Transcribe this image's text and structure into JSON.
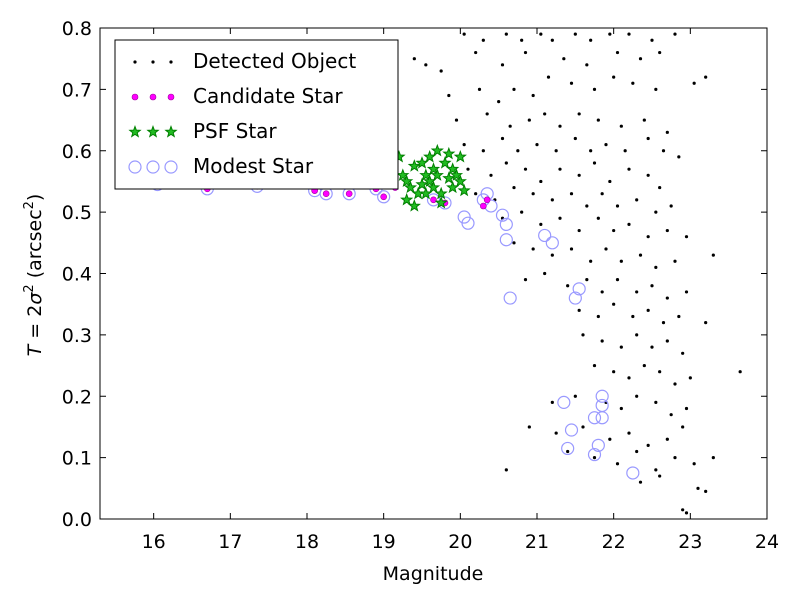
{
  "chart_data": {
    "type": "scatter",
    "xlabel": "Magnitude",
    "ylabel_parts": {
      "lhs": "T",
      "eq": " = 2",
      "sym": "σ",
      "sup": "2",
      "unit": " (arcsec",
      "unit_sup": "2",
      "close": ")"
    },
    "xlim": [
      15.3,
      24.0
    ],
    "ylim": [
      0.0,
      0.8
    ],
    "x_ticks": [
      16,
      17,
      18,
      19,
      20,
      21,
      22,
      23,
      24
    ],
    "y_ticks": [
      0.0,
      0.1,
      0.2,
      0.3,
      0.4,
      0.5,
      0.6,
      0.7,
      0.8
    ],
    "x_tick_labels": [
      "16",
      "17",
      "18",
      "19",
      "20",
      "21",
      "22",
      "23",
      "24"
    ],
    "y_tick_labels": [
      "0.0",
      "0.1",
      "0.2",
      "0.3",
      "0.4",
      "0.5",
      "0.6",
      "0.7",
      "0.8"
    ],
    "grid": false,
    "legend_position": "top-left",
    "colors": {
      "detected": "#000000",
      "candidate": "#ff00ff",
      "psf": "#008000",
      "modest": "#9999ff"
    },
    "series": [
      {
        "name": "Detected Object",
        "marker": "dot",
        "points": [
          [
            20.05,
            0.79
          ],
          [
            20.3,
            0.78
          ],
          [
            20.6,
            0.79
          ],
          [
            20.8,
            0.78
          ],
          [
            21.05,
            0.79
          ],
          [
            21.2,
            0.78
          ],
          [
            21.5,
            0.79
          ],
          [
            21.7,
            0.78
          ],
          [
            21.95,
            0.79
          ],
          [
            22.2,
            0.79
          ],
          [
            22.5,
            0.78
          ],
          [
            22.8,
            0.79
          ],
          [
            19.15,
            0.77
          ],
          [
            19.4,
            0.75
          ],
          [
            19.55,
            0.74
          ],
          [
            19.75,
            0.73
          ],
          [
            20.2,
            0.76
          ],
          [
            20.55,
            0.74
          ],
          [
            20.85,
            0.76
          ],
          [
            21.35,
            0.75
          ],
          [
            21.65,
            0.74
          ],
          [
            22.05,
            0.76
          ],
          [
            22.35,
            0.75
          ],
          [
            22.6,
            0.76
          ],
          [
            19.85,
            0.69
          ],
          [
            20.25,
            0.7
          ],
          [
            20.5,
            0.68
          ],
          [
            20.7,
            0.7
          ],
          [
            20.95,
            0.69
          ],
          [
            21.15,
            0.72
          ],
          [
            21.45,
            0.71
          ],
          [
            21.75,
            0.7
          ],
          [
            22.0,
            0.72
          ],
          [
            22.25,
            0.71
          ],
          [
            22.55,
            0.7
          ],
          [
            23.2,
            0.72
          ],
          [
            23.05,
            0.71
          ],
          [
            19.95,
            0.65
          ],
          [
            20.35,
            0.66
          ],
          [
            20.65,
            0.64
          ],
          [
            20.9,
            0.65
          ],
          [
            21.1,
            0.66
          ],
          [
            21.3,
            0.64
          ],
          [
            21.55,
            0.66
          ],
          [
            21.8,
            0.65
          ],
          [
            22.1,
            0.64
          ],
          [
            22.4,
            0.65
          ],
          [
            22.7,
            0.63
          ],
          [
            20.05,
            0.61
          ],
          [
            20.3,
            0.6
          ],
          [
            20.55,
            0.62
          ],
          [
            20.75,
            0.6
          ],
          [
            21.0,
            0.61
          ],
          [
            21.25,
            0.6
          ],
          [
            21.5,
            0.62
          ],
          [
            21.7,
            0.6
          ],
          [
            21.9,
            0.61
          ],
          [
            22.15,
            0.6
          ],
          [
            22.45,
            0.62
          ],
          [
            22.65,
            0.6
          ],
          [
            22.85,
            0.59
          ],
          [
            20.1,
            0.57
          ],
          [
            20.4,
            0.56
          ],
          [
            20.6,
            0.58
          ],
          [
            20.85,
            0.57
          ],
          [
            21.05,
            0.55
          ],
          [
            21.3,
            0.57
          ],
          [
            21.55,
            0.56
          ],
          [
            21.75,
            0.58
          ],
          [
            21.95,
            0.55
          ],
          [
            22.2,
            0.57
          ],
          [
            22.45,
            0.56
          ],
          [
            22.6,
            0.54
          ],
          [
            20.2,
            0.53
          ],
          [
            20.45,
            0.52
          ],
          [
            20.7,
            0.54
          ],
          [
            20.95,
            0.53
          ],
          [
            21.2,
            0.52
          ],
          [
            21.45,
            0.53
          ],
          [
            21.65,
            0.51
          ],
          [
            21.85,
            0.53
          ],
          [
            22.05,
            0.51
          ],
          [
            22.3,
            0.52
          ],
          [
            22.55,
            0.5
          ],
          [
            22.75,
            0.51
          ],
          [
            20.55,
            0.49
          ],
          [
            20.8,
            0.5
          ],
          [
            21.05,
            0.48
          ],
          [
            21.3,
            0.49
          ],
          [
            21.55,
            0.47
          ],
          [
            21.8,
            0.49
          ],
          [
            22.0,
            0.47
          ],
          [
            22.2,
            0.48
          ],
          [
            22.45,
            0.46
          ],
          [
            22.7,
            0.47
          ],
          [
            22.95,
            0.46
          ],
          [
            20.7,
            0.45
          ],
          [
            20.95,
            0.44
          ],
          [
            21.2,
            0.43
          ],
          [
            21.45,
            0.44
          ],
          [
            21.7,
            0.42
          ],
          [
            21.9,
            0.44
          ],
          [
            22.1,
            0.42
          ],
          [
            22.35,
            0.43
          ],
          [
            22.55,
            0.41
          ],
          [
            22.8,
            0.42
          ],
          [
            23.3,
            0.43
          ],
          [
            20.85,
            0.39
          ],
          [
            21.1,
            0.4
          ],
          [
            21.4,
            0.38
          ],
          [
            21.65,
            0.39
          ],
          [
            21.85,
            0.37
          ],
          [
            22.05,
            0.39
          ],
          [
            22.3,
            0.37
          ],
          [
            22.5,
            0.38
          ],
          [
            22.7,
            0.36
          ],
          [
            22.95,
            0.37
          ],
          [
            21.55,
            0.34
          ],
          [
            21.8,
            0.33
          ],
          [
            22.0,
            0.35
          ],
          [
            22.25,
            0.33
          ],
          [
            22.45,
            0.34
          ],
          [
            22.65,
            0.32
          ],
          [
            22.85,
            0.33
          ],
          [
            23.2,
            0.32
          ],
          [
            21.6,
            0.3
          ],
          [
            21.85,
            0.29
          ],
          [
            22.1,
            0.28
          ],
          [
            22.3,
            0.3
          ],
          [
            22.5,
            0.28
          ],
          [
            22.7,
            0.29
          ],
          [
            22.9,
            0.27
          ],
          [
            21.75,
            0.25
          ],
          [
            22.0,
            0.24
          ],
          [
            22.2,
            0.23
          ],
          [
            22.4,
            0.25
          ],
          [
            22.6,
            0.24
          ],
          [
            22.8,
            0.22
          ],
          [
            23.0,
            0.23
          ],
          [
            23.65,
            0.24
          ],
          [
            21.2,
            0.19
          ],
          [
            21.5,
            0.2
          ],
          [
            21.9,
            0.19
          ],
          [
            22.1,
            0.18
          ],
          [
            22.3,
            0.2
          ],
          [
            22.55,
            0.19
          ],
          [
            22.75,
            0.17
          ],
          [
            22.95,
            0.18
          ],
          [
            20.9,
            0.15
          ],
          [
            21.25,
            0.14
          ],
          [
            21.6,
            0.15
          ],
          [
            21.95,
            0.13
          ],
          [
            22.2,
            0.14
          ],
          [
            22.45,
            0.12
          ],
          [
            22.7,
            0.13
          ],
          [
            22.9,
            0.15
          ],
          [
            21.4,
            0.11
          ],
          [
            21.75,
            0.1
          ],
          [
            22.05,
            0.09
          ],
          [
            22.3,
            0.11
          ],
          [
            22.55,
            0.08
          ],
          [
            22.8,
            0.1
          ],
          [
            23.05,
            0.09
          ],
          [
            23.3,
            0.1
          ],
          [
            20.6,
            0.08
          ],
          [
            22.35,
            0.06
          ],
          [
            22.6,
            0.07
          ],
          [
            23.1,
            0.05
          ],
          [
            23.2,
            0.045
          ],
          [
            22.9,
            0.015
          ],
          [
            22.95,
            0.01
          ]
        ]
      },
      {
        "name": "Candidate Star",
        "marker": "circle-small",
        "points": [
          [
            16.05,
            0.545
          ],
          [
            16.7,
            0.538
          ],
          [
            17.35,
            0.542
          ],
          [
            17.85,
            0.544
          ],
          [
            18.1,
            0.535
          ],
          [
            18.25,
            0.53
          ],
          [
            18.55,
            0.53
          ],
          [
            18.9,
            0.538
          ],
          [
            19.0,
            0.525
          ],
          [
            19.05,
            0.545
          ],
          [
            19.15,
            0.54
          ],
          [
            19.65,
            0.52
          ],
          [
            19.8,
            0.515
          ],
          [
            20.3,
            0.51
          ],
          [
            20.35,
            0.52
          ]
        ]
      },
      {
        "name": "PSF Star",
        "marker": "star",
        "points": [
          [
            19.1,
            0.58
          ],
          [
            19.2,
            0.59
          ],
          [
            19.25,
            0.56
          ],
          [
            19.3,
            0.55
          ],
          [
            19.35,
            0.54
          ],
          [
            19.3,
            0.52
          ],
          [
            19.4,
            0.575
          ],
          [
            19.45,
            0.53
          ],
          [
            19.5,
            0.58
          ],
          [
            19.5,
            0.545
          ],
          [
            19.55,
            0.56
          ],
          [
            19.55,
            0.53
          ],
          [
            19.6,
            0.59
          ],
          [
            19.6,
            0.55
          ],
          [
            19.65,
            0.57
          ],
          [
            19.65,
            0.54
          ],
          [
            19.7,
            0.6
          ],
          [
            19.7,
            0.56
          ],
          [
            19.75,
            0.53
          ],
          [
            19.8,
            0.58
          ],
          [
            19.85,
            0.555
          ],
          [
            19.85,
            0.595
          ],
          [
            19.9,
            0.54
          ],
          [
            19.9,
            0.57
          ],
          [
            19.95,
            0.56
          ],
          [
            20.0,
            0.59
          ],
          [
            20.0,
            0.55
          ],
          [
            20.05,
            0.535
          ],
          [
            19.4,
            0.51
          ],
          [
            19.75,
            0.515
          ]
        ]
      },
      {
        "name": "Modest Star",
        "marker": "circle-open",
        "points": [
          [
            16.05,
            0.545
          ],
          [
            16.7,
            0.538
          ],
          [
            17.35,
            0.542
          ],
          [
            18.1,
            0.535
          ],
          [
            18.25,
            0.53
          ],
          [
            18.55,
            0.53
          ],
          [
            18.9,
            0.538
          ],
          [
            19.0,
            0.525
          ],
          [
            19.65,
            0.52
          ],
          [
            19.8,
            0.515
          ],
          [
            20.05,
            0.492
          ],
          [
            20.1,
            0.482
          ],
          [
            20.3,
            0.52
          ],
          [
            20.35,
            0.53
          ],
          [
            20.4,
            0.51
          ],
          [
            20.55,
            0.495
          ],
          [
            20.6,
            0.48
          ],
          [
            20.6,
            0.455
          ],
          [
            20.65,
            0.36
          ],
          [
            21.1,
            0.462
          ],
          [
            21.2,
            0.45
          ],
          [
            21.5,
            0.36
          ],
          [
            21.55,
            0.375
          ],
          [
            21.35,
            0.19
          ],
          [
            21.4,
            0.115
          ],
          [
            21.45,
            0.145
          ],
          [
            21.75,
            0.165
          ],
          [
            21.75,
            0.105
          ],
          [
            21.8,
            0.12
          ],
          [
            21.85,
            0.2
          ],
          [
            21.85,
            0.185
          ],
          [
            21.85,
            0.165
          ],
          [
            22.25,
            0.075
          ]
        ]
      }
    ]
  }
}
